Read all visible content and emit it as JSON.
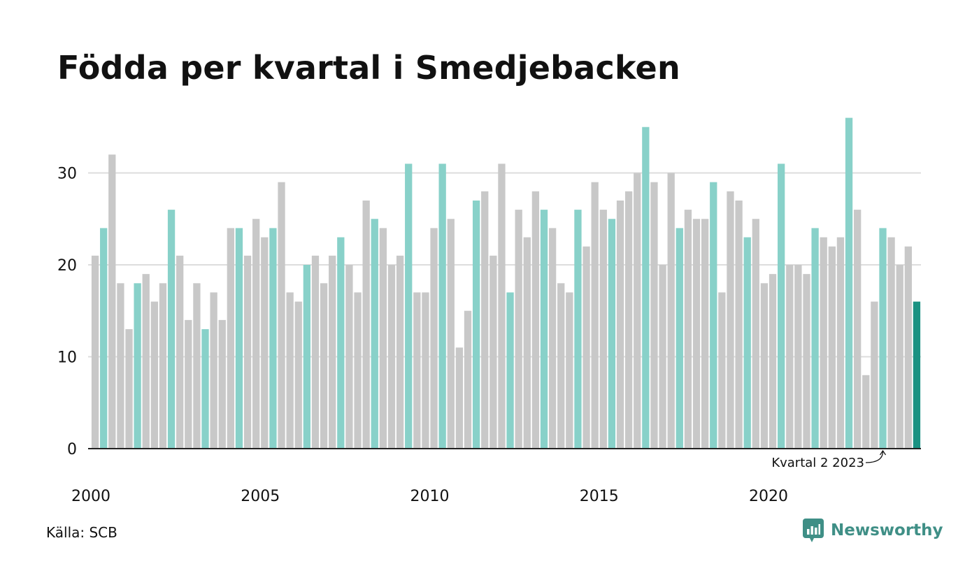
{
  "title": "Födda per kvartal i Smedjebacken",
  "source": "Källa: SCB",
  "brand": {
    "name": "Newsworthy",
    "icon": "newsworthy-logo-icon"
  },
  "colors": {
    "other": "#c8c8c8",
    "q2": "#88d1c9",
    "latest": "#1a9282",
    "grid": "#dddddd",
    "axis": "#222222",
    "brand": "#3f8f86"
  },
  "chart_data": {
    "type": "bar",
    "title": "Födda per kvartal i Smedjebacken",
    "xlabel": "",
    "ylabel": "",
    "ylim": [
      0,
      36
    ],
    "yticks": [
      0,
      10,
      20,
      30
    ],
    "xticks": [
      "2000",
      "2005",
      "2010",
      "2015",
      "2020"
    ],
    "start_year": 2000,
    "grid": true,
    "highlighted_quarter": 2,
    "annotation": "Kvartal 2 2023",
    "values": [
      21,
      24,
      32,
      18,
      13,
      18,
      19,
      16,
      18,
      26,
      21,
      14,
      18,
      13,
      17,
      14,
      24,
      24,
      21,
      25,
      23,
      24,
      29,
      17,
      16,
      20,
      21,
      18,
      21,
      23,
      20,
      17,
      27,
      25,
      24,
      20,
      21,
      31,
      17,
      17,
      24,
      31,
      25,
      11,
      15,
      27,
      28,
      21,
      31,
      17,
      26,
      23,
      28,
      26,
      24,
      18,
      17,
      26,
      22,
      29,
      26,
      25,
      27,
      28,
      30,
      35,
      29,
      20,
      30,
      24,
      26,
      25,
      25,
      29,
      17,
      28,
      27,
      23,
      25,
      18,
      19,
      31,
      20,
      20,
      19,
      24,
      23,
      22,
      23,
      36,
      26,
      8,
      16,
      24,
      23,
      20,
      22,
      16
    ]
  }
}
